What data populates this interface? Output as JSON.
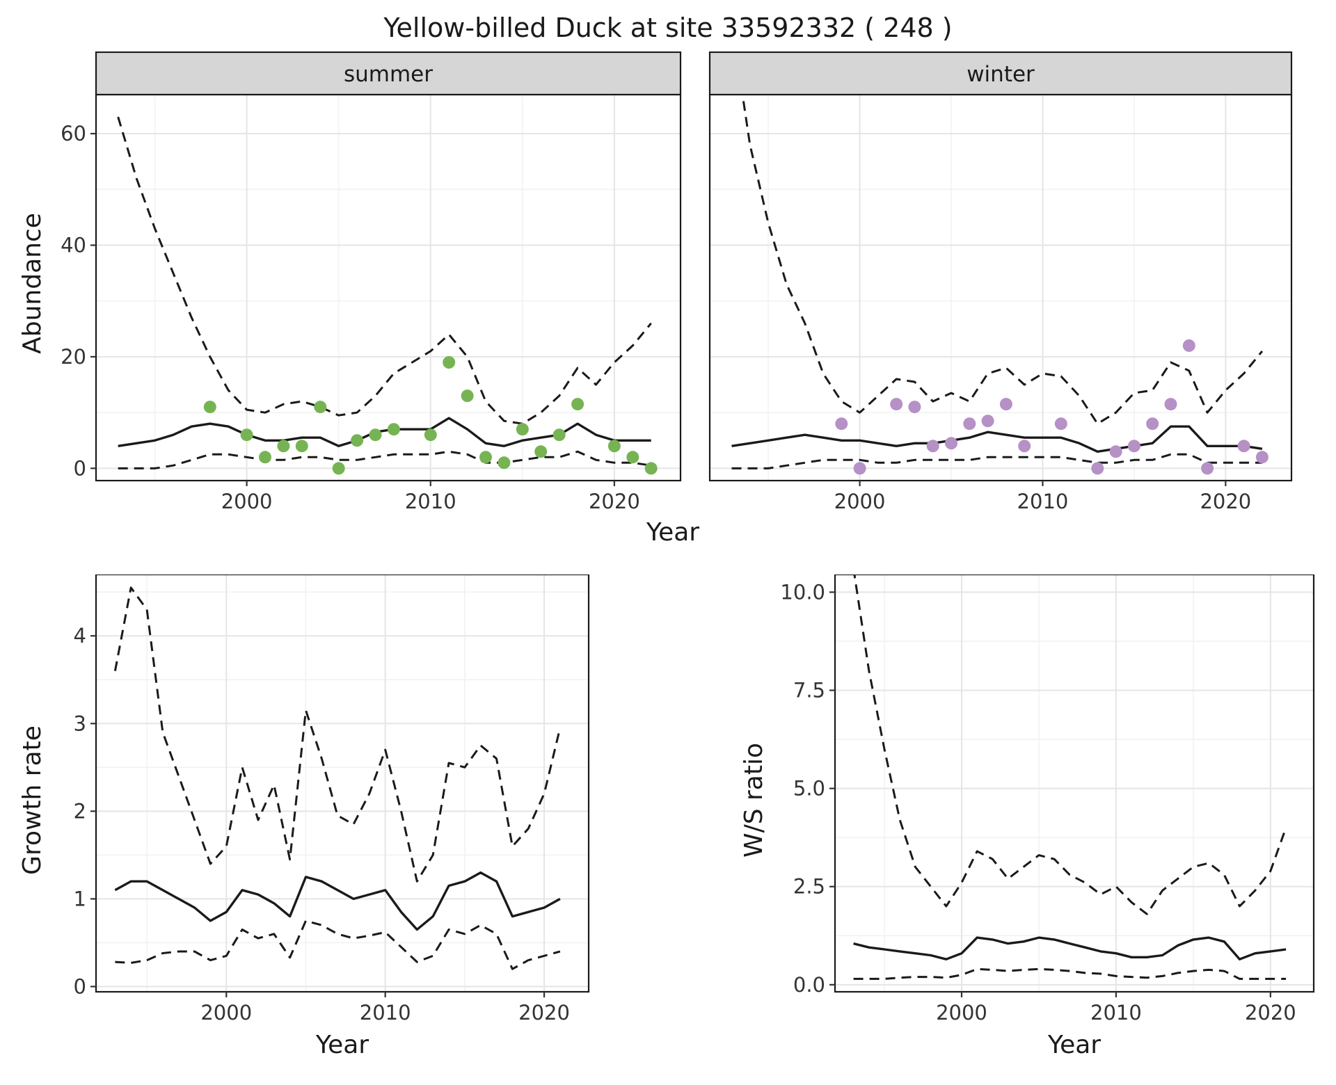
{
  "title": "Yellow-billed Duck at site 33592332 ( 248 )",
  "species": "Yellow-billed Duck",
  "site_id": "33592332",
  "site_count": "248",
  "axes": {
    "abundance_ylabel": "Abundance",
    "growth_ylabel": "Growth rate",
    "ws_ylabel": "W/S ratio",
    "year_xlabel": "Year"
  },
  "colors": {
    "summer_points": "#76b453",
    "winter_points": "#b591c6",
    "line": "#1a1a1a",
    "strip_bg": "#d6d6d6",
    "grid_major": "#e5e5e5",
    "grid_minor": "#f2f2f2"
  },
  "chart_data": [
    {
      "id": "abundance-summer",
      "type": "line",
      "title": "summer",
      "xlabel": "Year",
      "ylabel": "Abundance",
      "xlim": [
        1991.8,
        2023.6
      ],
      "ylim": [
        -2.2,
        67
      ],
      "xticks": [
        2000,
        2010,
        2020
      ],
      "xtick_labels": [
        "2000",
        "2010",
        "2020"
      ],
      "yticks": [
        0,
        20,
        40,
        60
      ],
      "ytick_labels": [
        "0",
        "20",
        "40",
        "60"
      ],
      "series": [
        {
          "name": "upper-ci",
          "style": "dashed",
          "x": [
            1993,
            1994,
            1995,
            1996,
            1997,
            1998,
            1999,
            2000,
            2001,
            2002,
            2003,
            2004,
            2005,
            2006,
            2007,
            2008,
            2009,
            2010,
            2011,
            2012,
            2013,
            2014,
            2015,
            2016,
            2017,
            2018,
            2019,
            2020,
            2021,
            2022
          ],
          "y": [
            63,
            52,
            43,
            35,
            27,
            20,
            14,
            10.5,
            10,
            11.5,
            12,
            11,
            9.5,
            10,
            13,
            17,
            19,
            21,
            24,
            20,
            12,
            8.5,
            8,
            10,
            13,
            18,
            15,
            19,
            22,
            26
          ]
        },
        {
          "name": "mean",
          "style": "solid",
          "x": [
            1993,
            1994,
            1995,
            1996,
            1997,
            1998,
            1999,
            2000,
            2001,
            2002,
            2003,
            2004,
            2005,
            2006,
            2007,
            2008,
            2009,
            2010,
            2011,
            2012,
            2013,
            2014,
            2015,
            2016,
            2017,
            2018,
            2019,
            2020,
            2021,
            2022
          ],
          "y": [
            4,
            4.5,
            5,
            6,
            7.5,
            8,
            7.5,
            6,
            5,
            5,
            5.5,
            5.5,
            4,
            5,
            6.5,
            7,
            7,
            7,
            9,
            7,
            4.5,
            4,
            5,
            5.5,
            6,
            8,
            6,
            5,
            5,
            5
          ]
        },
        {
          "name": "lower-ci",
          "style": "dashed",
          "x": [
            1993,
            1994,
            1995,
            1996,
            1997,
            1998,
            1999,
            2000,
            2001,
            2002,
            2003,
            2004,
            2005,
            2006,
            2007,
            2008,
            2009,
            2010,
            2011,
            2012,
            2013,
            2014,
            2015,
            2016,
            2017,
            2018,
            2019,
            2020,
            2021,
            2022
          ],
          "y": [
            0,
            0,
            0,
            0.5,
            1.5,
            2.5,
            2.5,
            2,
            1.5,
            1.5,
            2,
            2,
            1.5,
            1.5,
            2,
            2.5,
            2.5,
            2.5,
            3,
            2.5,
            1,
            1,
            1.5,
            2,
            2,
            3,
            1.5,
            1,
            1,
            0.5
          ]
        },
        {
          "name": "summer-observations",
          "style": "points",
          "color": "#76b453",
          "x": [
            1998,
            2000,
            2001,
            2002,
            2003,
            2004,
            2005,
            2006,
            2007,
            2008,
            2010,
            2011,
            2012,
            2013,
            2014,
            2015,
            2016,
            2017,
            2018,
            2020,
            2021,
            2022
          ],
          "y": [
            11,
            6,
            2,
            4,
            4,
            11,
            0,
            5,
            6,
            7,
            6,
            19,
            13,
            2,
            1,
            7,
            3,
            6,
            11.5,
            4,
            2,
            0
          ]
        }
      ]
    },
    {
      "id": "abundance-winter",
      "type": "line",
      "title": "winter",
      "xlabel": "Year",
      "ylabel": "Abundance",
      "xlim": [
        1991.8,
        2023.6
      ],
      "ylim": [
        -2.2,
        67
      ],
      "xticks": [
        2000,
        2010,
        2020
      ],
      "xtick_labels": [
        "2000",
        "2010",
        "2020"
      ],
      "yticks": [
        0,
        20,
        40,
        60
      ],
      "ytick_labels": [
        "0",
        "20",
        "40",
        "60"
      ],
      "series": [
        {
          "name": "upper-ci",
          "style": "dashed",
          "x": [
            1993,
            1994,
            1995,
            1996,
            1997,
            1998,
            1999,
            2000,
            2001,
            2002,
            2003,
            2004,
            2005,
            2006,
            2007,
            2008,
            2009,
            2010,
            2011,
            2012,
            2013,
            2014,
            2015,
            2016,
            2017,
            2018,
            2019,
            2020,
            2021,
            2022
          ],
          "y": [
            80,
            58,
            44,
            33,
            26,
            17,
            12,
            10,
            13,
            16,
            15.5,
            12,
            13.5,
            12,
            17,
            18,
            15,
            17,
            16.5,
            13,
            8,
            10,
            13.5,
            14,
            19,
            17.5,
            10,
            14,
            17,
            21
          ]
        },
        {
          "name": "mean",
          "style": "solid",
          "x": [
            1993,
            1994,
            1995,
            1996,
            1997,
            1998,
            1999,
            2000,
            2001,
            2002,
            2003,
            2004,
            2005,
            2006,
            2007,
            2008,
            2009,
            2010,
            2011,
            2012,
            2013,
            2014,
            2015,
            2016,
            2017,
            2018,
            2019,
            2020,
            2021,
            2022
          ],
          "y": [
            4,
            4.5,
            5,
            5.5,
            6,
            5.5,
            5,
            5,
            4.5,
            4,
            4.5,
            4.5,
            5,
            5.5,
            6.5,
            6,
            5.5,
            5.5,
            5.5,
            4.5,
            3,
            3.5,
            4,
            4.5,
            7.5,
            7.5,
            4,
            4,
            4,
            3.5
          ]
        },
        {
          "name": "lower-ci",
          "style": "dashed",
          "x": [
            1993,
            1994,
            1995,
            1996,
            1997,
            1998,
            1999,
            2000,
            2001,
            2002,
            2003,
            2004,
            2005,
            2006,
            2007,
            2008,
            2009,
            2010,
            2011,
            2012,
            2013,
            2014,
            2015,
            2016,
            2017,
            2018,
            2019,
            2020,
            2021,
            2022
          ],
          "y": [
            0,
            0,
            0,
            0.5,
            1,
            1.5,
            1.5,
            1.5,
            1,
            1,
            1.5,
            1.5,
            1.5,
            1.5,
            2,
            2,
            2,
            2,
            2,
            1.5,
            1,
            1,
            1.5,
            1.5,
            2.5,
            2.5,
            1,
            1,
            1,
            1
          ]
        },
        {
          "name": "winter-observations",
          "style": "points",
          "color": "#b591c6",
          "x": [
            1999,
            2000,
            2002,
            2003,
            2004,
            2005,
            2006,
            2007,
            2008,
            2009,
            2011,
            2013,
            2014,
            2015,
            2016,
            2017,
            2018,
            2019,
            2021,
            2022
          ],
          "y": [
            8,
            0,
            11.5,
            11,
            4,
            4.5,
            8,
            8.5,
            11.5,
            4,
            8,
            0,
            3,
            4,
            8,
            11.5,
            22,
            0,
            4,
            2
          ]
        }
      ]
    },
    {
      "id": "growth-rate",
      "type": "line",
      "title": "",
      "xlabel": "Year",
      "ylabel": "Growth rate",
      "xlim": [
        1991.8,
        2022.8
      ],
      "ylim": [
        -0.06,
        4.7
      ],
      "xticks": [
        2000,
        2010,
        2020
      ],
      "xtick_labels": [
        "2000",
        "2010",
        "2020"
      ],
      "yticks": [
        0,
        1,
        2,
        3,
        4
      ],
      "ytick_labels": [
        "0",
        "1",
        "2",
        "3",
        "4"
      ],
      "series": [
        {
          "name": "upper-ci",
          "style": "dashed",
          "x": [
            1993,
            1994,
            1995,
            1996,
            1997,
            1998,
            1999,
            2000,
            2001,
            2002,
            2003,
            2004,
            2005,
            2006,
            2007,
            2008,
            2009,
            2010,
            2011,
            2012,
            2013,
            2014,
            2015,
            2016,
            2017,
            2018,
            2019,
            2020,
            2021
          ],
          "y": [
            3.6,
            4.55,
            4.3,
            2.9,
            2.4,
            1.9,
            1.4,
            1.6,
            2.5,
            1.9,
            2.3,
            1.45,
            3.15,
            2.6,
            1.95,
            1.85,
            2.2,
            2.7,
            2.0,
            1.2,
            1.5,
            2.55,
            2.5,
            2.75,
            2.6,
            1.6,
            1.8,
            2.2,
            2.95
          ]
        },
        {
          "name": "mean",
          "style": "solid",
          "x": [
            1993,
            1994,
            1995,
            1996,
            1997,
            1998,
            1999,
            2000,
            2001,
            2002,
            2003,
            2004,
            2005,
            2006,
            2007,
            2008,
            2009,
            2010,
            2011,
            2012,
            2013,
            2014,
            2015,
            2016,
            2017,
            2018,
            2019,
            2020,
            2021
          ],
          "y": [
            1.1,
            1.2,
            1.2,
            1.1,
            1.0,
            0.9,
            0.75,
            0.85,
            1.1,
            1.05,
            0.95,
            0.8,
            1.25,
            1.2,
            1.1,
            1.0,
            1.05,
            1.1,
            0.85,
            0.65,
            0.8,
            1.15,
            1.2,
            1.3,
            1.2,
            0.8,
            0.85,
            0.9,
            1.0
          ]
        },
        {
          "name": "lower-ci",
          "style": "dashed",
          "x": [
            1993,
            1994,
            1995,
            1996,
            1997,
            1998,
            1999,
            2000,
            2001,
            2002,
            2003,
            2004,
            2005,
            2006,
            2007,
            2008,
            2009,
            2010,
            2011,
            2012,
            2013,
            2014,
            2015,
            2016,
            2017,
            2018,
            2019,
            2020,
            2021
          ],
          "y": [
            0.28,
            0.27,
            0.3,
            0.38,
            0.4,
            0.4,
            0.3,
            0.35,
            0.65,
            0.55,
            0.6,
            0.33,
            0.75,
            0.7,
            0.6,
            0.55,
            0.58,
            0.62,
            0.45,
            0.28,
            0.35,
            0.65,
            0.6,
            0.7,
            0.6,
            0.2,
            0.3,
            0.35,
            0.4
          ]
        }
      ]
    },
    {
      "id": "ws-ratio",
      "type": "line",
      "title": "",
      "xlabel": "Year",
      "ylabel": "W/S ratio",
      "xlim": [
        1991.8,
        2022.8
      ],
      "ylim": [
        -0.18,
        10.45
      ],
      "xticks": [
        2000,
        2010,
        2020
      ],
      "xtick_labels": [
        "2000",
        "2010",
        "2020"
      ],
      "yticks": [
        0,
        2.5,
        5,
        7.5,
        10
      ],
      "ytick_labels": [
        "0.0",
        "2.5",
        "5.0",
        "7.5",
        "10.0"
      ],
      "series": [
        {
          "name": "upper-ci",
          "style": "dashed",
          "x": [
            1993,
            1994,
            1995,
            1996,
            1997,
            1998,
            1999,
            2000,
            2001,
            2002,
            2003,
            2004,
            2005,
            2006,
            2007,
            2008,
            2009,
            2010,
            2011,
            2012,
            2013,
            2014,
            2015,
            2016,
            2017,
            2018,
            2019,
            2020,
            2021
          ],
          "y": [
            10.6,
            8.0,
            6.0,
            4.2,
            3.0,
            2.5,
            2.0,
            2.6,
            3.4,
            3.2,
            2.7,
            3.0,
            3.3,
            3.2,
            2.8,
            2.6,
            2.3,
            2.5,
            2.1,
            1.8,
            2.4,
            2.7,
            3.0,
            3.1,
            2.8,
            2.0,
            2.4,
            2.9,
            4.0
          ]
        },
        {
          "name": "mean",
          "style": "solid",
          "x": [
            1993,
            1994,
            1995,
            1996,
            1997,
            1998,
            1999,
            2000,
            2001,
            2002,
            2003,
            2004,
            2005,
            2006,
            2007,
            2008,
            2009,
            2010,
            2011,
            2012,
            2013,
            2014,
            2015,
            2016,
            2017,
            2018,
            2019,
            2020,
            2021
          ],
          "y": [
            1.05,
            0.95,
            0.9,
            0.85,
            0.8,
            0.75,
            0.65,
            0.8,
            1.2,
            1.15,
            1.05,
            1.1,
            1.2,
            1.15,
            1.05,
            0.95,
            0.85,
            0.8,
            0.7,
            0.7,
            0.75,
            1.0,
            1.15,
            1.2,
            1.1,
            0.65,
            0.8,
            0.85,
            0.9
          ]
        },
        {
          "name": "lower-ci",
          "style": "dashed",
          "x": [
            1993,
            1994,
            1995,
            1996,
            1997,
            1998,
            1999,
            2000,
            2001,
            2002,
            2003,
            2004,
            2005,
            2006,
            2007,
            2008,
            2009,
            2010,
            2011,
            2012,
            2013,
            2014,
            2015,
            2016,
            2017,
            2018,
            2019,
            2020,
            2021
          ],
          "y": [
            0.15,
            0.15,
            0.15,
            0.18,
            0.2,
            0.2,
            0.18,
            0.25,
            0.4,
            0.38,
            0.35,
            0.38,
            0.4,
            0.38,
            0.35,
            0.3,
            0.28,
            0.22,
            0.2,
            0.18,
            0.22,
            0.3,
            0.35,
            0.38,
            0.35,
            0.15,
            0.15,
            0.15,
            0.15
          ]
        }
      ]
    }
  ]
}
